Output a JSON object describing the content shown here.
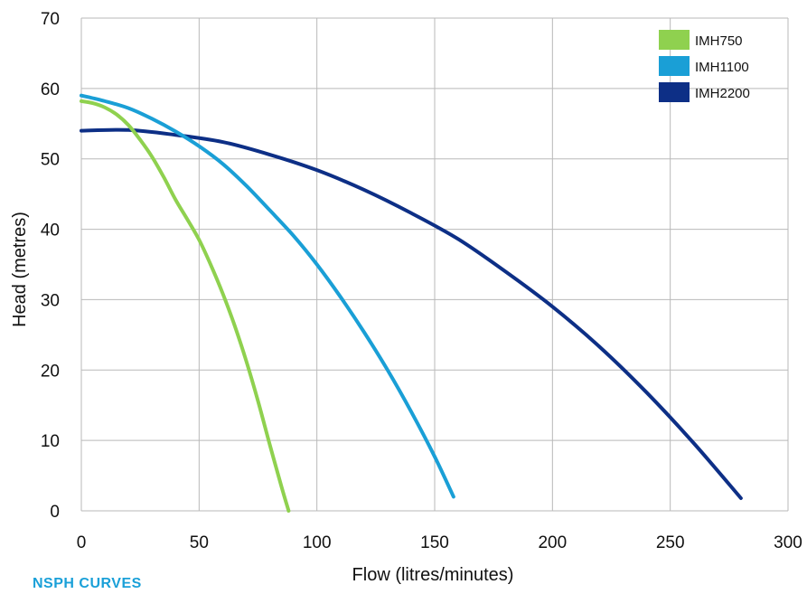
{
  "chart_data": {
    "type": "line",
    "title": "",
    "xlabel": "Flow (litres/minutes)",
    "ylabel": "Head (metres)",
    "xlim": [
      0,
      300
    ],
    "ylim": [
      0,
      70
    ],
    "xticks": [
      0,
      50,
      100,
      150,
      200,
      250,
      300
    ],
    "yticks": [
      0,
      10,
      20,
      30,
      40,
      50,
      60,
      70
    ],
    "grid": true,
    "legend_position": "top-right",
    "series": [
      {
        "name": "IMH750",
        "color": "#8fd14f",
        "x": [
          0,
          5,
          10,
          15,
          20,
          25,
          30,
          35,
          40,
          45,
          50,
          55,
          60,
          65,
          70,
          75,
          80,
          85,
          88
        ],
        "y": [
          58.2,
          57.9,
          57.3,
          56.3,
          54.8,
          52.7,
          50.3,
          47.4,
          44.2,
          41.4,
          38.5,
          34.9,
          30.9,
          26.4,
          21.3,
          15.6,
          9.4,
          3.4,
          0
        ]
      },
      {
        "name": "IMH1100",
        "color": "#1a9fd6",
        "x": [
          0,
          10,
          20,
          30,
          40,
          50,
          60,
          70,
          80,
          90,
          100,
          110,
          120,
          130,
          140,
          150,
          158
        ],
        "y": [
          59,
          58.2,
          57.2,
          55.7,
          53.9,
          51.8,
          49.3,
          46.2,
          42.7,
          39.1,
          35,
          30.4,
          25.4,
          20,
          14.1,
          7.7,
          2
        ]
      },
      {
        "name": "IMH2200",
        "color": "#0d2f86",
        "x": [
          0,
          20,
          40,
          60,
          80,
          100,
          120,
          140,
          160,
          180,
          200,
          220,
          240,
          260,
          280
        ],
        "y": [
          54,
          54.1,
          53.4,
          52.4,
          50.6,
          48.4,
          45.6,
          42.3,
          38.6,
          34,
          29,
          23.3,
          16.8,
          9.6,
          1.8
        ]
      }
    ]
  },
  "footer": {
    "section_title": "NSPH CURVES"
  }
}
